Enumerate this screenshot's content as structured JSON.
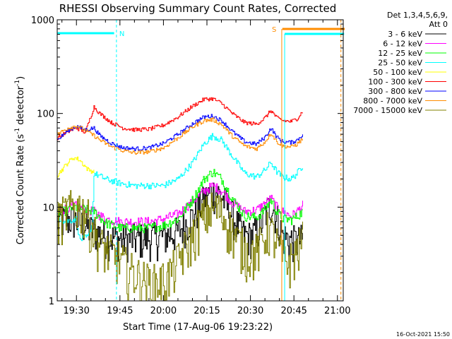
{
  "chart_data": {
    "type": "line",
    "title": "RHESSI Observing Summary Count Rates, Corrected",
    "xlabel": "Start Time (17-Aug-06 19:23:22)",
    "ylabel": "Corrected Count Rate (s",
    "ylabel_sup1": "-1",
    "ylabel_mid": " detector",
    "ylabel_sup2": "-1",
    "ylabel_end": ")",
    "yscale": "log",
    "ylim": [
      1,
      1000
    ],
    "xlim": [
      "19:23:22",
      "21:02:00"
    ],
    "x_unit": "minutes from 19:00",
    "x_range_minutes": [
      23.37,
      122.0
    ],
    "y_ticks": [
      {
        "value": 1,
        "label": "1"
      },
      {
        "value": 10,
        "label": "10"
      },
      {
        "value": 100,
        "label": "100"
      },
      {
        "value": 1000,
        "label": "1000"
      }
    ],
    "x_ticks": [
      {
        "minute": 30,
        "label": "19:30"
      },
      {
        "minute": 45,
        "label": "19:45"
      },
      {
        "minute": 60,
        "label": "20:00"
      },
      {
        "minute": 75,
        "label": "20:15"
      },
      {
        "minute": 90,
        "label": "20:30"
      },
      {
        "minute": 105,
        "label": "20:45"
      },
      {
        "minute": 120,
        "label": "21:00"
      }
    ],
    "legend": {
      "placement": "right",
      "header": [
        "Det 1,3,4,5,6,9,",
        "Att 0"
      ],
      "entries": [
        {
          "name": "3 - 6 keV",
          "color": "#000000"
        },
        {
          "name": "6 - 12 keV",
          "color": "#ff00ff"
        },
        {
          "name": "12 - 25 keV",
          "color": "#00ff00"
        },
        {
          "name": "25 - 50 keV",
          "color": "#00ffff"
        },
        {
          "name": "50 - 100 keV",
          "color": "#ffff00"
        },
        {
          "name": "100 - 300 keV",
          "color": "#ff0000"
        },
        {
          "name": "300 - 800 keV",
          "color": "#0000ff"
        },
        {
          "name": "800 - 7000 keV",
          "color": "#ff8c00"
        },
        {
          "name": "7000 - 15000 keV",
          "color": "#808000"
        }
      ]
    },
    "annotations": {
      "night_label": "N",
      "night_color": "#00ffff",
      "night_bar_minutes": [
        23.37,
        43.0
      ],
      "night_dashed_minute": 43.8,
      "night2_bar_minutes": [
        101.8,
        122.3
      ],
      "night2_solid_minute": 101.8,
      "saa_label": "S",
      "saa_color": "#ff8c00",
      "saa_bar_minutes": [
        101.0,
        122.5
      ],
      "saa_solid_minute": 100.8,
      "end_dashed_minute": 121.2
    },
    "series": [
      {
        "name": "3 - 6 keV",
        "color": "#000000",
        "noise": 0.45,
        "step": 0.28,
        "points": [
          [
            23.4,
            7.0
          ],
          [
            28,
            7.5
          ],
          [
            31,
            7.0
          ],
          [
            34,
            6.0
          ],
          [
            38,
            5.2
          ],
          [
            41,
            4.8
          ],
          [
            45,
            4.6
          ],
          [
            50,
            4.6
          ],
          [
            55,
            4.7
          ],
          [
            60,
            4.9
          ],
          [
            65,
            5.5
          ],
          [
            70,
            8.0
          ],
          [
            73,
            11.0
          ],
          [
            76,
            14.0
          ],
          [
            78,
            15.0
          ],
          [
            80,
            13.0
          ],
          [
            83,
            9.0
          ],
          [
            86,
            6.0
          ],
          [
            88,
            5.0
          ],
          [
            90,
            4.9
          ],
          [
            93,
            6.0
          ],
          [
            95,
            8.5
          ],
          [
            97,
            11.0
          ],
          [
            99,
            8.0
          ],
          [
            101,
            5.0
          ],
          [
            103,
            4.6
          ],
          [
            106,
            4.3
          ],
          [
            108,
            4.6
          ]
        ]
      },
      {
        "name": "6 - 12 keV",
        "color": "#ff00ff",
        "noise": 0.12,
        "step": 0.3,
        "points": [
          [
            23.4,
            9.0
          ],
          [
            29,
            10.5
          ],
          [
            33,
            9.5
          ],
          [
            36,
            9.0
          ],
          [
            40,
            7.5
          ],
          [
            45,
            7.0
          ],
          [
            50,
            7.0
          ],
          [
            55,
            7.0
          ],
          [
            60,
            7.5
          ],
          [
            65,
            8.5
          ],
          [
            70,
            11.5
          ],
          [
            74,
            15.0
          ],
          [
            77,
            17.0
          ],
          [
            80,
            15.0
          ],
          [
            84,
            11.0
          ],
          [
            88,
            9.0
          ],
          [
            92,
            9.3
          ],
          [
            95,
            11.0
          ],
          [
            97,
            12.5
          ],
          [
            99,
            10.0
          ],
          [
            101,
            9.0
          ],
          [
            104,
            8.0
          ],
          [
            106,
            9.0
          ],
          [
            108,
            10.5
          ]
        ]
      },
      {
        "name": "12 - 25 keV",
        "color": "#00ff00",
        "noise": 0.12,
        "step": 0.3,
        "points": [
          [
            23.4,
            8.5
          ],
          [
            29,
            10.0
          ],
          [
            33,
            9.5
          ],
          [
            36,
            9.0
          ],
          [
            40,
            6.8
          ],
          [
            45,
            6.0
          ],
          [
            50,
            6.0
          ],
          [
            55,
            6.0
          ],
          [
            60,
            6.4
          ],
          [
            65,
            7.5
          ],
          [
            70,
            12.0
          ],
          [
            74,
            20.0
          ],
          [
            77,
            24.0
          ],
          [
            80,
            20.0
          ],
          [
            84,
            12.0
          ],
          [
            88,
            8.0
          ],
          [
            92,
            7.8
          ],
          [
            95,
            9.5
          ],
          [
            97,
            12.0
          ],
          [
            99,
            9.0
          ],
          [
            101,
            7.6
          ],
          [
            104,
            7.3
          ],
          [
            106,
            8.0
          ],
          [
            108,
            9.0
          ]
        ]
      },
      {
        "name": "25 - 50 keV",
        "color": "#00ffff",
        "noise": 0.08,
        "step": 0.3,
        "points": [
          [
            23.4,
            8.0
          ],
          [
            26,
            7.0
          ],
          [
            30,
            7.5
          ],
          [
            31,
            4.5
          ],
          [
            34,
            4.8
          ],
          [
            35.5,
            7.0
          ],
          [
            36,
            23.0
          ],
          [
            40,
            20.0
          ],
          [
            45,
            18.0
          ],
          [
            50,
            17.0
          ],
          [
            55,
            17.0
          ],
          [
            60,
            17.0
          ],
          [
            65,
            20.0
          ],
          [
            70,
            30.0
          ],
          [
            74,
            48.0
          ],
          [
            77,
            58.0
          ],
          [
            80,
            52.0
          ],
          [
            84,
            34.0
          ],
          [
            88,
            23.0
          ],
          [
            92,
            21.0
          ],
          [
            95,
            25.0
          ],
          [
            97,
            30.0
          ],
          [
            99,
            24.0
          ],
          [
            101,
            21.0
          ],
          [
            104,
            20.0
          ],
          [
            106,
            23.0
          ],
          [
            108,
            28.0
          ]
        ]
      },
      {
        "name": "50 - 100 keV",
        "color": "#ffff00",
        "noise": 0.06,
        "step": 0.3,
        "points": [
          [
            23.4,
            22.0
          ],
          [
            27,
            30.0
          ],
          [
            29,
            34.0
          ],
          [
            31,
            32.0
          ],
          [
            34,
            25.0
          ],
          [
            36,
            24.0
          ]
        ]
      },
      {
        "name": "100 - 300 keV",
        "color": "#ff0000",
        "noise": 0.05,
        "step": 0.3,
        "points": [
          [
            23.4,
            55.0
          ],
          [
            27,
            64.0
          ],
          [
            30,
            70.0
          ],
          [
            33,
            63.0
          ],
          [
            36,
            118.0
          ],
          [
            38,
            100.0
          ],
          [
            42,
            80.0
          ],
          [
            46,
            70.0
          ],
          [
            50,
            67.0
          ],
          [
            55,
            68.0
          ],
          [
            60,
            75.0
          ],
          [
            65,
            92.0
          ],
          [
            70,
            120.0
          ],
          [
            74,
            142.0
          ],
          [
            77,
            144.0
          ],
          [
            80,
            128.0
          ],
          [
            84,
            98.0
          ],
          [
            88,
            80.0
          ],
          [
            92,
            77.0
          ],
          [
            95,
            90.0
          ],
          [
            97,
            108.0
          ],
          [
            99,
            90.0
          ],
          [
            101,
            84.0
          ],
          [
            104,
            82.0
          ],
          [
            106,
            88.0
          ],
          [
            108,
            106.0
          ]
        ]
      },
      {
        "name": "300 - 800 keV",
        "color": "#0000ff",
        "noise": 0.05,
        "step": 0.3,
        "points": [
          [
            23.4,
            52.0
          ],
          [
            27,
            66.0
          ],
          [
            30,
            73.0
          ],
          [
            33,
            67.0
          ],
          [
            36,
            70.0
          ],
          [
            38,
            58.0
          ],
          [
            42,
            48.0
          ],
          [
            46,
            43.0
          ],
          [
            50,
            42.0
          ],
          [
            55,
            43.0
          ],
          [
            60,
            48.0
          ],
          [
            65,
            60.0
          ],
          [
            70,
            78.0
          ],
          [
            74,
            92.0
          ],
          [
            77,
            94.0
          ],
          [
            80,
            84.0
          ],
          [
            84,
            63.0
          ],
          [
            88,
            50.0
          ],
          [
            92,
            47.0
          ],
          [
            95,
            56.0
          ],
          [
            97,
            70.0
          ],
          [
            99,
            56.0
          ],
          [
            101,
            50.0
          ],
          [
            104,
            49.0
          ],
          [
            106,
            52.0
          ],
          [
            108,
            60.0
          ]
        ]
      },
      {
        "name": "800 - 7000 keV",
        "color": "#ff8c00",
        "noise": 0.05,
        "step": 0.3,
        "points": [
          [
            23.4,
            60.0
          ],
          [
            27,
            70.0
          ],
          [
            30,
            74.0
          ],
          [
            33,
            66.0
          ],
          [
            36,
            58.0
          ],
          [
            38,
            52.0
          ],
          [
            42,
            44.0
          ],
          [
            46,
            40.0
          ],
          [
            50,
            38.0
          ],
          [
            55,
            39.0
          ],
          [
            60,
            43.0
          ],
          [
            65,
            55.0
          ],
          [
            70,
            72.0
          ],
          [
            74,
            84.0
          ],
          [
            77,
            86.0
          ],
          [
            80,
            76.0
          ],
          [
            84,
            56.0
          ],
          [
            88,
            45.0
          ],
          [
            92,
            42.0
          ],
          [
            95,
            50.0
          ],
          [
            97,
            62.0
          ],
          [
            99,
            50.0
          ],
          [
            101,
            45.0
          ],
          [
            104,
            44.0
          ],
          [
            106,
            47.0
          ],
          [
            108,
            54.0
          ]
        ]
      },
      {
        "name": "7000 - 15000 keV",
        "color": "#808000",
        "noise": 0.55,
        "step": 0.3,
        "points": [
          [
            23.4,
            7.5
          ],
          [
            27,
            9.5
          ],
          [
            30,
            10.5
          ],
          [
            33,
            9.0
          ],
          [
            35.5,
            6.0
          ],
          [
            38,
            4.0
          ],
          [
            41,
            3.4
          ],
          [
            45,
            2.8
          ],
          [
            48,
            2.2
          ],
          [
            52,
            1.8
          ],
          [
            55,
            1.6
          ],
          [
            58,
            1.6
          ],
          [
            61,
            1.8
          ],
          [
            64,
            2.4
          ],
          [
            67,
            3.5
          ],
          [
            70,
            5.0
          ],
          [
            73,
            7.5
          ],
          [
            76,
            9.5
          ],
          [
            78,
            10.0
          ],
          [
            80,
            8.5
          ],
          [
            83,
            6.0
          ],
          [
            86,
            4.2
          ],
          [
            89,
            3.3
          ],
          [
            92,
            3.4
          ],
          [
            94,
            4.5
          ],
          [
            96,
            6.0
          ],
          [
            98,
            5.0
          ],
          [
            100,
            3.4
          ],
          [
            102,
            2.6
          ],
          [
            104,
            2.8
          ],
          [
            106,
            3.5
          ],
          [
            108,
            4.6
          ]
        ]
      }
    ]
  },
  "footer": {
    "timestamp": "16-Oct-2021 15:50"
  }
}
